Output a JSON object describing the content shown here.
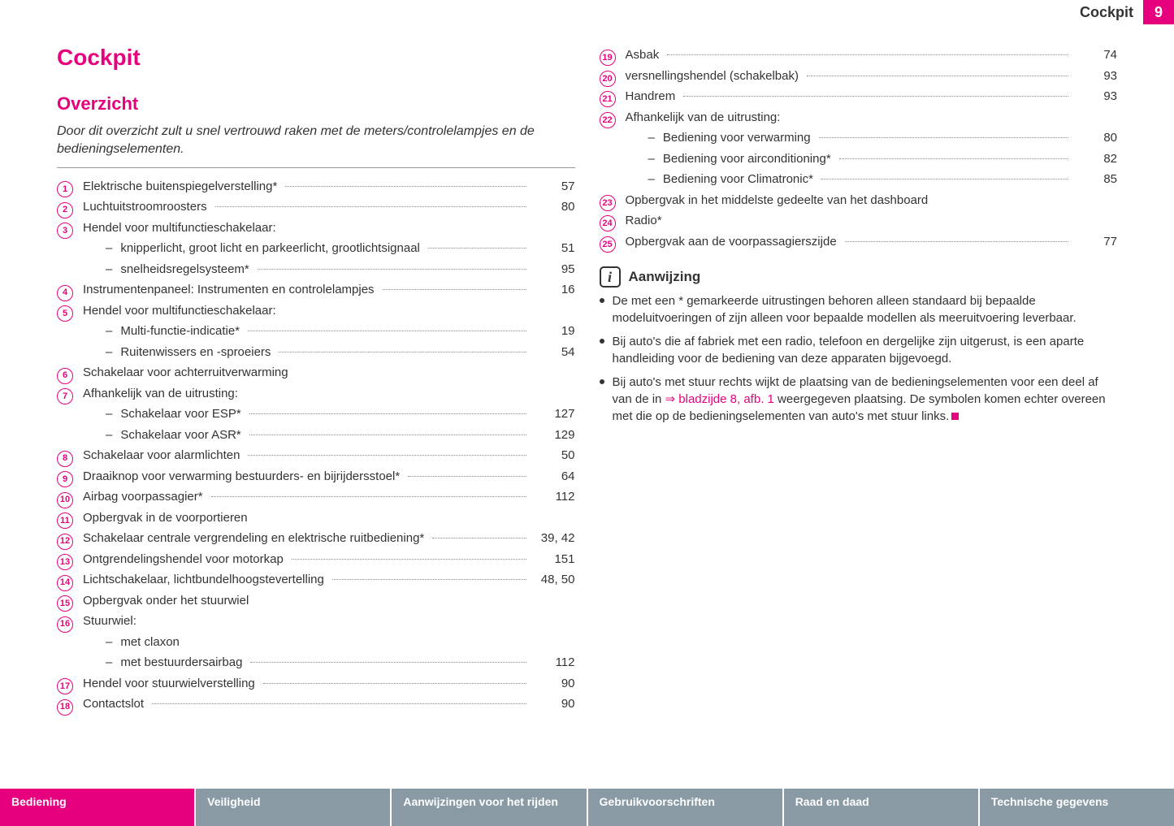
{
  "header": {
    "section_name": "Cockpit",
    "page_number": "9"
  },
  "page_title": "Cockpit",
  "section_title": "Overzicht",
  "intro": "Door dit overzicht zult u snel vertrouwd raken met de meters/controlelampjes en de bedieningselementen.",
  "left_items": [
    {
      "num": "1",
      "label": "Elektrische buitenspiegelverstelling*",
      "page": "57"
    },
    {
      "num": "2",
      "label": "Luchtuitstroomroosters",
      "page": "80"
    },
    {
      "num": "3",
      "label": "Hendel voor multifunctieschakelaar:",
      "page": "",
      "no_leader": true
    },
    {
      "sub": true,
      "label": "knipperlicht, groot licht en parkeerlicht, grootlichtsignaal",
      "page": "51"
    },
    {
      "sub": true,
      "label": "snelheidsregelsysteem*",
      "page": "95"
    },
    {
      "num": "4",
      "label": "Instrumentenpaneel: Instrumenten en controlelampjes",
      "page": "16"
    },
    {
      "num": "5",
      "label": "Hendel voor multifunctieschakelaar:",
      "page": "",
      "no_leader": true
    },
    {
      "sub": true,
      "label": "Multi-functie-indicatie*",
      "page": "19"
    },
    {
      "sub": true,
      "label": "Ruitenwissers en -sproeiers",
      "page": "54"
    },
    {
      "num": "6",
      "label": "Schakelaar voor achterruitverwarming",
      "page": "",
      "no_leader": true
    },
    {
      "num": "7",
      "label": "Afhankelijk van de uitrusting:",
      "page": "",
      "no_leader": true
    },
    {
      "sub": true,
      "label": "Schakelaar voor ESP*",
      "page": "127"
    },
    {
      "sub": true,
      "label": "Schakelaar voor ASR*",
      "page": "129"
    },
    {
      "num": "8",
      "label": "Schakelaar voor alarmlichten",
      "page": "50"
    },
    {
      "num": "9",
      "label": "Draaiknop voor verwarming bestuurders- en bijrijdersstoel*",
      "page": "64"
    },
    {
      "num": "10",
      "label": "Airbag voorpassagier*",
      "page": "112"
    },
    {
      "num": "11",
      "label": "Opbergvak in de voorportieren",
      "page": "",
      "no_leader": true
    },
    {
      "num": "12",
      "label": "Schakelaar centrale vergrendeling en elektrische ruitbediening*",
      "page": "39, 42"
    },
    {
      "num": "13",
      "label": "Ontgrendelingshendel voor motorkap",
      "page": "151"
    },
    {
      "num": "14",
      "label": "Lichtschakelaar, lichtbundelhoogstevertelling",
      "page": "48, 50"
    },
    {
      "num": "15",
      "label": "Opbergvak onder het stuurwiel",
      "page": "",
      "no_leader": true
    },
    {
      "num": "16",
      "label": "Stuurwiel:",
      "page": "",
      "no_leader": true
    },
    {
      "sub": true,
      "label": "met claxon",
      "page": "",
      "no_leader": true
    },
    {
      "sub": true,
      "label": "met bestuurdersairbag",
      "page": "112"
    },
    {
      "num": "17",
      "label": "Hendel voor stuurwielverstelling",
      "page": "90"
    },
    {
      "num": "18",
      "label": "Contactslot",
      "page": "90"
    }
  ],
  "right_items": [
    {
      "num": "19",
      "label": "Asbak",
      "page": "74"
    },
    {
      "num": "20",
      "label": "versnellingshendel (schakelbak)",
      "page": "93"
    },
    {
      "num": "21",
      "label": "Handrem",
      "page": "93"
    },
    {
      "num": "22",
      "label": "Afhankelijk van de uitrusting:",
      "page": "",
      "no_leader": true
    },
    {
      "sub": true,
      "label": "Bediening voor verwarming",
      "page": "80"
    },
    {
      "sub": true,
      "label": "Bediening voor airconditioning*",
      "page": "82"
    },
    {
      "sub": true,
      "label": "Bediening voor Climatronic*",
      "page": "85"
    },
    {
      "num": "23",
      "label": "Opbergvak in het middelste gedeelte van het dashboard",
      "page": "",
      "no_leader": true
    },
    {
      "num": "24",
      "label": "Radio*",
      "page": "",
      "no_leader": true
    },
    {
      "num": "25",
      "label": "Opbergvak aan de voorpassagierszijde",
      "page": "77"
    }
  ],
  "note": {
    "title": "Aanwijzing",
    "bullets": [
      {
        "text": "De met een * gemarkeerde uitrustingen behoren alleen standaard bij bepaalde modeluitvoeringen of zijn alleen voor bepaalde modellen als meeruitvoering leverbaar."
      },
      {
        "text": "Bij auto's die af fabriek met een radio, telefoon en dergelijke zijn uitgerust, is een aparte handleiding voor de bediening van deze apparaten bijgevoegd."
      },
      {
        "pre": "Bij auto's met stuur rechts wijkt de plaatsing van de bedieningselementen voor een deel af van de in ",
        "link": "⇒ bladzijde 8, afb. 1",
        "post": " weergegeven plaatsing. De symbolen komen echter overeen met die op de bedieningselementen van auto's met stuur links.",
        "stopmark": true
      }
    ]
  },
  "footer_tabs": [
    {
      "label": "Bediening",
      "active": true
    },
    {
      "label": "Veiligheid",
      "active": false
    },
    {
      "label": "Aanwijzingen voor het rijden",
      "active": false
    },
    {
      "label": "Gebruikvoorschriften",
      "active": false
    },
    {
      "label": "Raad en daad",
      "active": false
    },
    {
      "label": "Technische gegevens",
      "active": false
    }
  ],
  "colors": {
    "accent": "#e6007e",
    "inactive_tab": "#8a9aa5",
    "text": "#333333"
  }
}
